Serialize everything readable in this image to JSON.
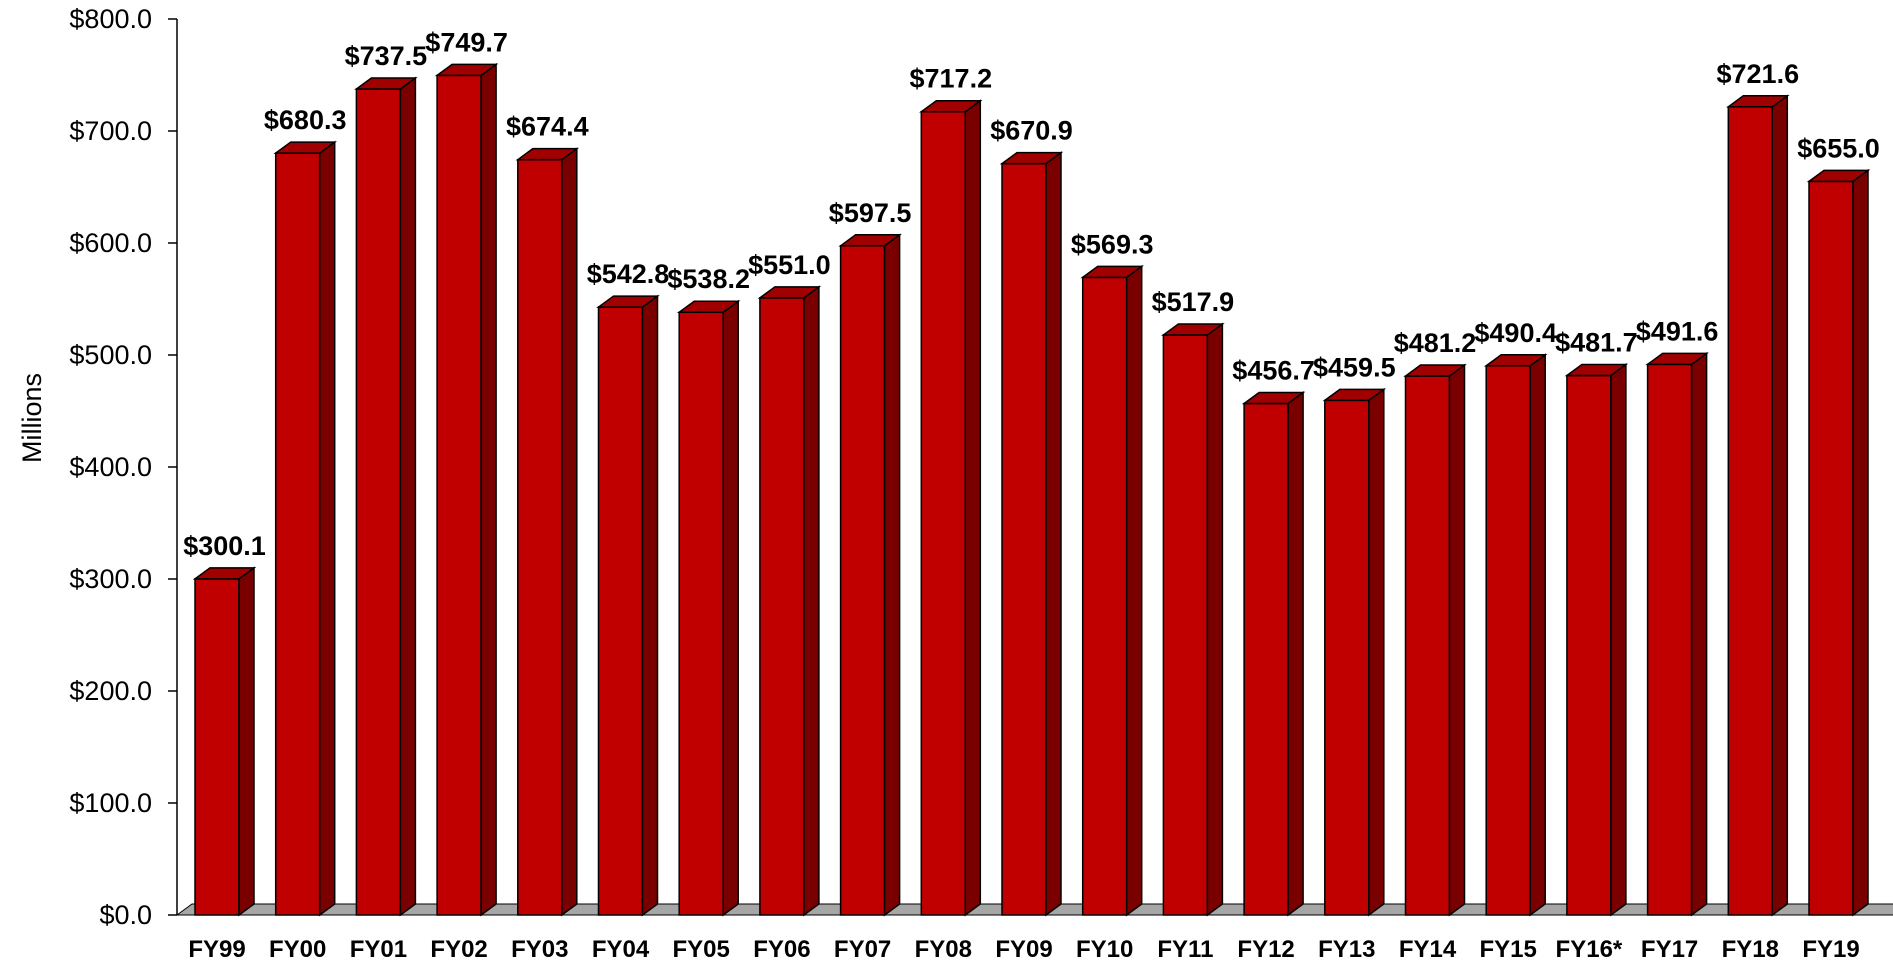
{
  "chart_data": {
    "type": "bar",
    "ylabel": "Millions",
    "ylim": [
      0,
      800
    ],
    "yticks": [
      "$0.0",
      "$100.0",
      "$200.0",
      "$300.0",
      "$400.0",
      "$500.0",
      "$600.0",
      "$700.0",
      "$800.0"
    ],
    "ytick_values": [
      0,
      100,
      200,
      300,
      400,
      500,
      600,
      700,
      800
    ],
    "categories": [
      "FY99",
      "FY00",
      "FY01",
      "FY02",
      "FY03",
      "FY04",
      "FY05",
      "FY06",
      "FY07",
      "FY08",
      "FY09",
      "FY10",
      "FY11",
      "FY12",
      "FY13",
      "FY14",
      "FY15",
      "FY16*",
      "FY17",
      "FY18",
      "FY19"
    ],
    "values": [
      300.1,
      680.3,
      737.5,
      749.7,
      674.4,
      542.8,
      538.2,
      551.0,
      597.5,
      717.2,
      670.9,
      569.3,
      517.9,
      456.7,
      459.5,
      481.2,
      490.4,
      481.7,
      491.6,
      721.6,
      655.0
    ],
    "value_labels": [
      "$300.1",
      "$680.3",
      "$737.5",
      "$749.7",
      "$674.4",
      "$542.8",
      "$538.2",
      "$551.0",
      "$597.5",
      "$717.2",
      "$670.9",
      "$569.3",
      "$517.9",
      "$456.7",
      "$459.5",
      "$481.2",
      "$490.4",
      "$481.7",
      "$491.6",
      "$721.6",
      "$655.0"
    ],
    "bar_style": "3d",
    "grid": false,
    "legend": "none",
    "colors": {
      "bar_front": "#c00000",
      "bar_top": "#a00000",
      "bar_side": "#7a0000",
      "bar_outline": "#000000",
      "floor": "#a6a6a6"
    }
  }
}
